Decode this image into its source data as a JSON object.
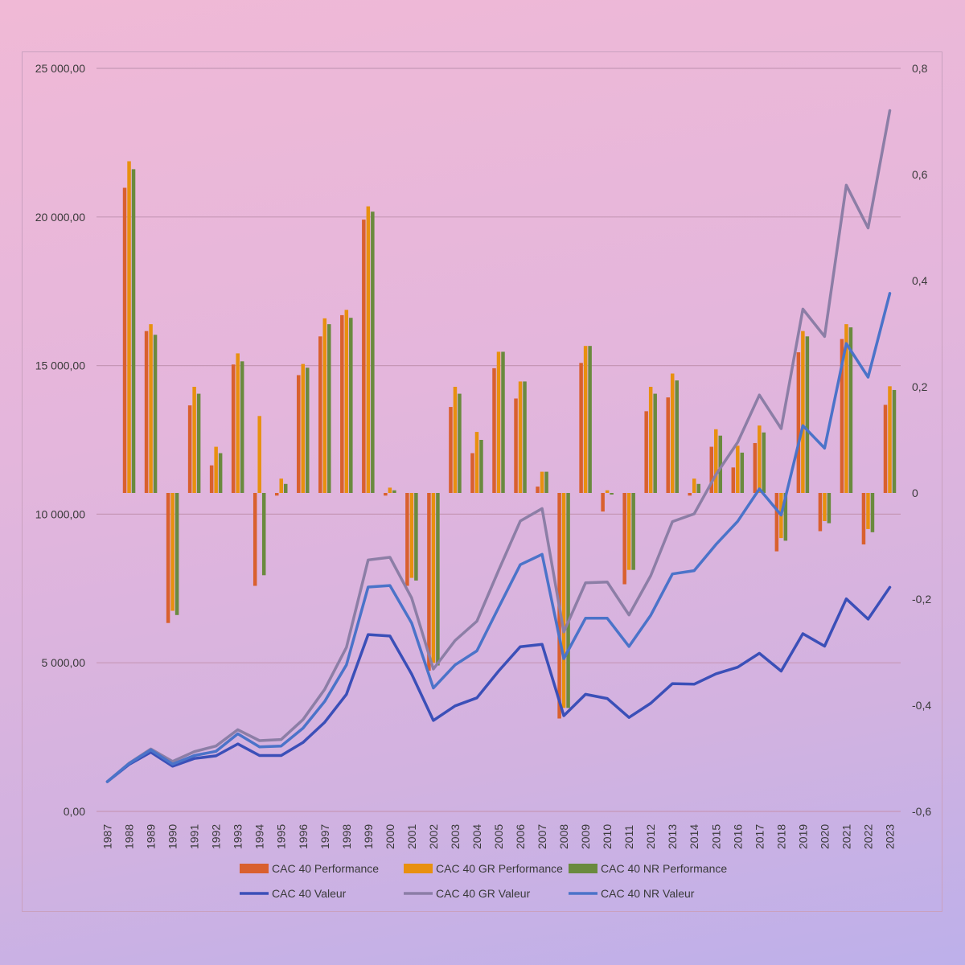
{
  "chart_data": {
    "type": "bar+line",
    "title": "",
    "x": [
      1987,
      1988,
      1989,
      1990,
      1991,
      1992,
      1993,
      1994,
      1995,
      1996,
      1997,
      1998,
      1999,
      2000,
      2001,
      2002,
      2003,
      2004,
      2005,
      2006,
      2007,
      2008,
      2009,
      2010,
      2011,
      2012,
      2013,
      2014,
      2015,
      2016,
      2017,
      2018,
      2019,
      2020,
      2021,
      2022,
      2023
    ],
    "y_left": {
      "min": 0,
      "max": 25000,
      "ticks": [
        0,
        5000,
        10000,
        15000,
        20000,
        25000
      ],
      "tick_labels": [
        "0,00",
        "5 000,00",
        "10 000,00",
        "15 000,00",
        "20 000,00",
        "25 000,00"
      ]
    },
    "y_right": {
      "min": -0.6,
      "max": 0.8,
      "ticks": [
        -0.6,
        -0.4,
        -0.2,
        0,
        0.2,
        0.4,
        0.6,
        0.8
      ],
      "tick_labels": [
        "-0,6",
        "-0,4",
        "-0,2",
        "0",
        "0,2",
        "0,4",
        "0,6",
        "0,8"
      ]
    },
    "bar_series": [
      {
        "name": "CAC 40 Performance",
        "color": "#d9602e",
        "axis": "right",
        "values": [
          null,
          0.575,
          0.305,
          -0.245,
          0.165,
          0.052,
          0.242,
          -0.175,
          -0.005,
          0.222,
          0.295,
          0.335,
          0.515,
          -0.005,
          -0.175,
          -0.335,
          0.162,
          0.075,
          0.235,
          0.178,
          0.012,
          -0.425,
          0.245,
          -0.035,
          -0.172,
          0.154,
          0.18,
          -0.005,
          0.087,
          0.048,
          0.094,
          -0.11,
          0.265,
          -0.072,
          0.29,
          -0.097,
          0.166
        ]
      },
      {
        "name": "CAC 40 GR Performance",
        "color": "#e8900f",
        "axis": "right",
        "values": [
          null,
          0.625,
          0.318,
          -0.222,
          0.2,
          0.087,
          0.263,
          0.145,
          0.027,
          0.243,
          0.329,
          0.345,
          0.54,
          0.01,
          -0.16,
          -0.32,
          0.2,
          0.115,
          0.266,
          0.21,
          0.04,
          -0.405,
          0.277,
          0.005,
          -0.145,
          0.2,
          0.225,
          0.027,
          0.12,
          0.089,
          0.127,
          -0.085,
          0.305,
          -0.053,
          0.318,
          -0.068,
          0.201
        ]
      },
      {
        "name": "CAC 40 NR Performance",
        "color": "#6a8a3e",
        "axis": "right",
        "values": [
          null,
          0.61,
          0.298,
          -0.23,
          0.187,
          0.075,
          0.248,
          -0.155,
          0.017,
          0.236,
          0.318,
          0.33,
          0.53,
          0.005,
          -0.165,
          -0.325,
          0.187,
          0.1,
          0.266,
          0.21,
          0.04,
          -0.405,
          0.277,
          -0.003,
          -0.145,
          0.187,
          0.212,
          0.017,
          0.108,
          0.076,
          0.114,
          -0.09,
          0.295,
          -0.057,
          0.312,
          -0.074,
          0.194
        ]
      }
    ],
    "line_series": [
      {
        "name": "CAC 40 Valeur",
        "color": "#3b4fb8",
        "axis": "left",
        "values": [
          1000,
          1580,
          1990,
          1520,
          1780,
          1870,
          2270,
          1880,
          1880,
          2320,
          3000,
          3940,
          5950,
          5900,
          4620,
          3060,
          3550,
          3820,
          4720,
          5540,
          5620,
          3220,
          3940,
          3800,
          3160,
          3640,
          4300,
          4280,
          4630,
          4850,
          5320,
          4720,
          5980,
          5560,
          7150,
          6470,
          7540
        ]
      },
      {
        "name": "CAC 40 GR Valeur",
        "color": "#8c7ea6",
        "axis": "left",
        "values": [
          1000,
          1620,
          2100,
          1680,
          2010,
          2200,
          2750,
          2380,
          2420,
          3090,
          4110,
          5520,
          8460,
          8550,
          7180,
          4790,
          5750,
          6400,
          8110,
          9770,
          10190,
          6040,
          7690,
          7720,
          6610,
          7930,
          9750,
          10010,
          11330,
          12420,
          14010,
          12880,
          16900,
          15980,
          21070,
          19630,
          23580
        ]
      },
      {
        "name": "CAC 40 NR Valeur",
        "color": "#4b73c9",
        "axis": "left",
        "values": [
          1000,
          1610,
          2070,
          1590,
          1880,
          2020,
          2610,
          2170,
          2200,
          2800,
          3700,
          4930,
          7550,
          7600,
          6340,
          4150,
          4930,
          5400,
          6860,
          8300,
          8650,
          5140,
          6500,
          6500,
          5550,
          6600,
          7990,
          8100,
          8980,
          9760,
          10850,
          9970,
          12980,
          12220,
          15740,
          14610,
          17430
        ]
      }
    ],
    "legend": [
      "CAC 40 Performance",
      "CAC 40 GR Performance",
      "CAC 40 NR Performance",
      "CAC 40 Valeur",
      "CAC 40 GR Valeur",
      "CAC 40 NR Valeur"
    ],
    "legend_position": "bottom"
  }
}
